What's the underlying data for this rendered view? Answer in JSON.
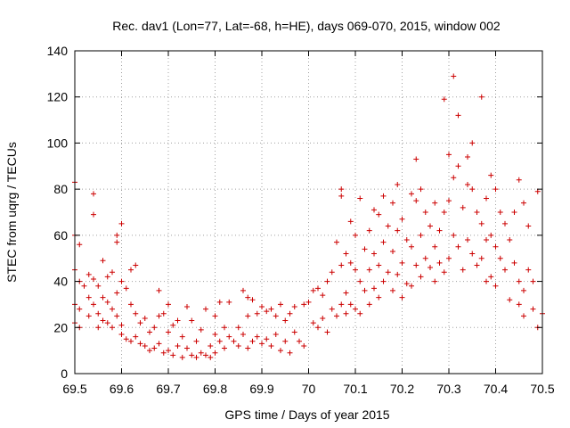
{
  "chart_data": {
    "type": "scatter",
    "title": "Rec. dav1 (Lon=77, Lat=-68, h=HE), days 069-070, 2015, window 002",
    "xlabel": "GPS time / Days of year 2015",
    "ylabel": "STEC from uqrg / TECUs",
    "xlim": [
      69.5,
      70.5
    ],
    "ylim": [
      0,
      140
    ],
    "xticks": [
      "69.5",
      "69.6",
      "69.7",
      "69.8",
      "69.9",
      "70",
      "70.1",
      "70.2",
      "70.3",
      "70.4",
      "70.5"
    ],
    "yticks": [
      "0",
      "20",
      "40",
      "60",
      "80",
      "100",
      "120",
      "140"
    ],
    "marker": "+",
    "color": "#cc0000",
    "points": [
      [
        69.5,
        83
      ],
      [
        69.5,
        60
      ],
      [
        69.5,
        45
      ],
      [
        69.5,
        30
      ],
      [
        69.5,
        22
      ],
      [
        69.51,
        56
      ],
      [
        69.51,
        40
      ],
      [
        69.51,
        28
      ],
      [
        69.51,
        20
      ],
      [
        69.52,
        38
      ],
      [
        69.53,
        43
      ],
      [
        69.53,
        33
      ],
      [
        69.53,
        25
      ],
      [
        69.54,
        78
      ],
      [
        69.54,
        69
      ],
      [
        69.54,
        41
      ],
      [
        69.54,
        30
      ],
      [
        69.55,
        38
      ],
      [
        69.55,
        26
      ],
      [
        69.55,
        20
      ],
      [
        69.56,
        49
      ],
      [
        69.56,
        33
      ],
      [
        69.56,
        23
      ],
      [
        69.57,
        42
      ],
      [
        69.57,
        31
      ],
      [
        69.57,
        22
      ],
      [
        69.58,
        44
      ],
      [
        69.58,
        28
      ],
      [
        69.58,
        20
      ],
      [
        69.59,
        60
      ],
      [
        69.59,
        57
      ],
      [
        69.59,
        35
      ],
      [
        69.59,
        25
      ],
      [
        69.6,
        65
      ],
      [
        69.6,
        40
      ],
      [
        69.6,
        21
      ],
      [
        69.6,
        17
      ],
      [
        69.61,
        37
      ],
      [
        69.61,
        15
      ],
      [
        69.62,
        45
      ],
      [
        69.62,
        30
      ],
      [
        69.62,
        14
      ],
      [
        69.63,
        47
      ],
      [
        69.63,
        26
      ],
      [
        69.63,
        16
      ],
      [
        69.64,
        22
      ],
      [
        69.64,
        13
      ],
      [
        69.65,
        24
      ],
      [
        69.65,
        12
      ],
      [
        69.66,
        18
      ],
      [
        69.66,
        10
      ],
      [
        69.67,
        20
      ],
      [
        69.67,
        11
      ],
      [
        69.68,
        36
      ],
      [
        69.68,
        25
      ],
      [
        69.68,
        13
      ],
      [
        69.69,
        26
      ],
      [
        69.69,
        9
      ],
      [
        69.7,
        30
      ],
      [
        69.7,
        18
      ],
      [
        69.7,
        10
      ],
      [
        69.71,
        21
      ],
      [
        69.71,
        8
      ],
      [
        69.72,
        23
      ],
      [
        69.72,
        12
      ],
      [
        69.73,
        16
      ],
      [
        69.73,
        7
      ],
      [
        69.74,
        29
      ],
      [
        69.74,
        11
      ],
      [
        69.75,
        23
      ],
      [
        69.75,
        8
      ],
      [
        69.76,
        14
      ],
      [
        69.76,
        7
      ],
      [
        69.77,
        19
      ],
      [
        69.77,
        9
      ],
      [
        69.78,
        28
      ],
      [
        69.78,
        8
      ],
      [
        69.79,
        12
      ],
      [
        69.79,
        7
      ],
      [
        69.8,
        25
      ],
      [
        69.8,
        17
      ],
      [
        69.8,
        9
      ],
      [
        69.81,
        31
      ],
      [
        69.81,
        14
      ],
      [
        69.82,
        20
      ],
      [
        69.82,
        11
      ],
      [
        69.83,
        31
      ],
      [
        69.83,
        16
      ],
      [
        69.84,
        14
      ],
      [
        69.85,
        20
      ],
      [
        69.85,
        12
      ],
      [
        69.86,
        36
      ],
      [
        69.86,
        17
      ],
      [
        69.87,
        33
      ],
      [
        69.87,
        25
      ],
      [
        69.87,
        11
      ],
      [
        69.88,
        32
      ],
      [
        69.88,
        14
      ],
      [
        69.89,
        26
      ],
      [
        69.89,
        16
      ],
      [
        69.9,
        29
      ],
      [
        69.9,
        13
      ],
      [
        69.91,
        27
      ],
      [
        69.91,
        15
      ],
      [
        69.92,
        28
      ],
      [
        69.92,
        12
      ],
      [
        69.93,
        25
      ],
      [
        69.93,
        17
      ],
      [
        69.94,
        30
      ],
      [
        69.94,
        10
      ],
      [
        69.95,
        23
      ],
      [
        69.95,
        14
      ],
      [
        69.96,
        26
      ],
      [
        69.96,
        9
      ],
      [
        69.97,
        29
      ],
      [
        69.97,
        18
      ],
      [
        69.98,
        14
      ],
      [
        69.99,
        30
      ],
      [
        69.99,
        12
      ],
      [
        70.0,
        31
      ],
      [
        70.01,
        36
      ],
      [
        70.01,
        22
      ],
      [
        70.02,
        37
      ],
      [
        70.02,
        20
      ],
      [
        70.03,
        34
      ],
      [
        70.03,
        24
      ],
      [
        70.04,
        40
      ],
      [
        70.04,
        18
      ],
      [
        70.05,
        44
      ],
      [
        70.05,
        28
      ],
      [
        70.06,
        57
      ],
      [
        70.06,
        25
      ],
      [
        70.07,
        80
      ],
      [
        70.07,
        77
      ],
      [
        70.07,
        47
      ],
      [
        70.07,
        30
      ],
      [
        70.08,
        52
      ],
      [
        70.08,
        35
      ],
      [
        70.08,
        26
      ],
      [
        70.09,
        66
      ],
      [
        70.09,
        48
      ],
      [
        70.09,
        30
      ],
      [
        70.1,
        60
      ],
      [
        70.1,
        45
      ],
      [
        70.1,
        28
      ],
      [
        70.11,
        76
      ],
      [
        70.11,
        40
      ],
      [
        70.11,
        26
      ],
      [
        70.12,
        54
      ],
      [
        70.12,
        36
      ],
      [
        70.13,
        62
      ],
      [
        70.13,
        45
      ],
      [
        70.13,
        30
      ],
      [
        70.14,
        71
      ],
      [
        70.14,
        52
      ],
      [
        70.14,
        37
      ],
      [
        70.15,
        69
      ],
      [
        70.15,
        47
      ],
      [
        70.15,
        33
      ],
      [
        70.16,
        77
      ],
      [
        70.16,
        57
      ],
      [
        70.16,
        40
      ],
      [
        70.17,
        64
      ],
      [
        70.17,
        44
      ],
      [
        70.18,
        74
      ],
      [
        70.18,
        53
      ],
      [
        70.18,
        36
      ],
      [
        70.19,
        82
      ],
      [
        70.19,
        62
      ],
      [
        70.19,
        43
      ],
      [
        70.2,
        67
      ],
      [
        70.2,
        48
      ],
      [
        70.2,
        33
      ],
      [
        70.21,
        58
      ],
      [
        70.21,
        39
      ],
      [
        70.22,
        78
      ],
      [
        70.22,
        55
      ],
      [
        70.22,
        38
      ],
      [
        70.23,
        93
      ],
      [
        70.23,
        75
      ],
      [
        70.23,
        47
      ],
      [
        70.24,
        80
      ],
      [
        70.24,
        60
      ],
      [
        70.24,
        42
      ],
      [
        70.25,
        70
      ],
      [
        70.25,
        50
      ],
      [
        70.26,
        64
      ],
      [
        70.26,
        46
      ],
      [
        70.27,
        74
      ],
      [
        70.27,
        55
      ],
      [
        70.27,
        40
      ],
      [
        70.28,
        62
      ],
      [
        70.28,
        48
      ],
      [
        70.29,
        119
      ],
      [
        70.29,
        70
      ],
      [
        70.29,
        44
      ],
      [
        70.3,
        95
      ],
      [
        70.3,
        75
      ],
      [
        70.3,
        50
      ],
      [
        70.31,
        129
      ],
      [
        70.31,
        85
      ],
      [
        70.31,
        60
      ],
      [
        70.32,
        112
      ],
      [
        70.32,
        90
      ],
      [
        70.32,
        55
      ],
      [
        70.33,
        72
      ],
      [
        70.33,
        45
      ],
      [
        70.34,
        94
      ],
      [
        70.34,
        82
      ],
      [
        70.34,
        58
      ],
      [
        70.35,
        100
      ],
      [
        70.35,
        80
      ],
      [
        70.35,
        52
      ],
      [
        70.36,
        70
      ],
      [
        70.36,
        47
      ],
      [
        70.37,
        120
      ],
      [
        70.37,
        65
      ],
      [
        70.37,
        50
      ],
      [
        70.38,
        76
      ],
      [
        70.38,
        58
      ],
      [
        70.38,
        40
      ],
      [
        70.39,
        86
      ],
      [
        70.39,
        60
      ],
      [
        70.39,
        42
      ],
      [
        70.4,
        80
      ],
      [
        70.4,
        55
      ],
      [
        70.4,
        38
      ],
      [
        70.41,
        70
      ],
      [
        70.41,
        50
      ],
      [
        70.42,
        65
      ],
      [
        70.42,
        45
      ],
      [
        70.43,
        58
      ],
      [
        70.43,
        32
      ],
      [
        70.44,
        70
      ],
      [
        70.44,
        48
      ],
      [
        70.45,
        84
      ],
      [
        70.45,
        40
      ],
      [
        70.45,
        30
      ],
      [
        70.46,
        74
      ],
      [
        70.46,
        36
      ],
      [
        70.46,
        25
      ],
      [
        70.47,
        64
      ],
      [
        70.47,
        45
      ],
      [
        70.48,
        40
      ],
      [
        70.48,
        28
      ],
      [
        70.49,
        79
      ],
      [
        70.49,
        20
      ],
      [
        70.5,
        26
      ]
    ]
  }
}
